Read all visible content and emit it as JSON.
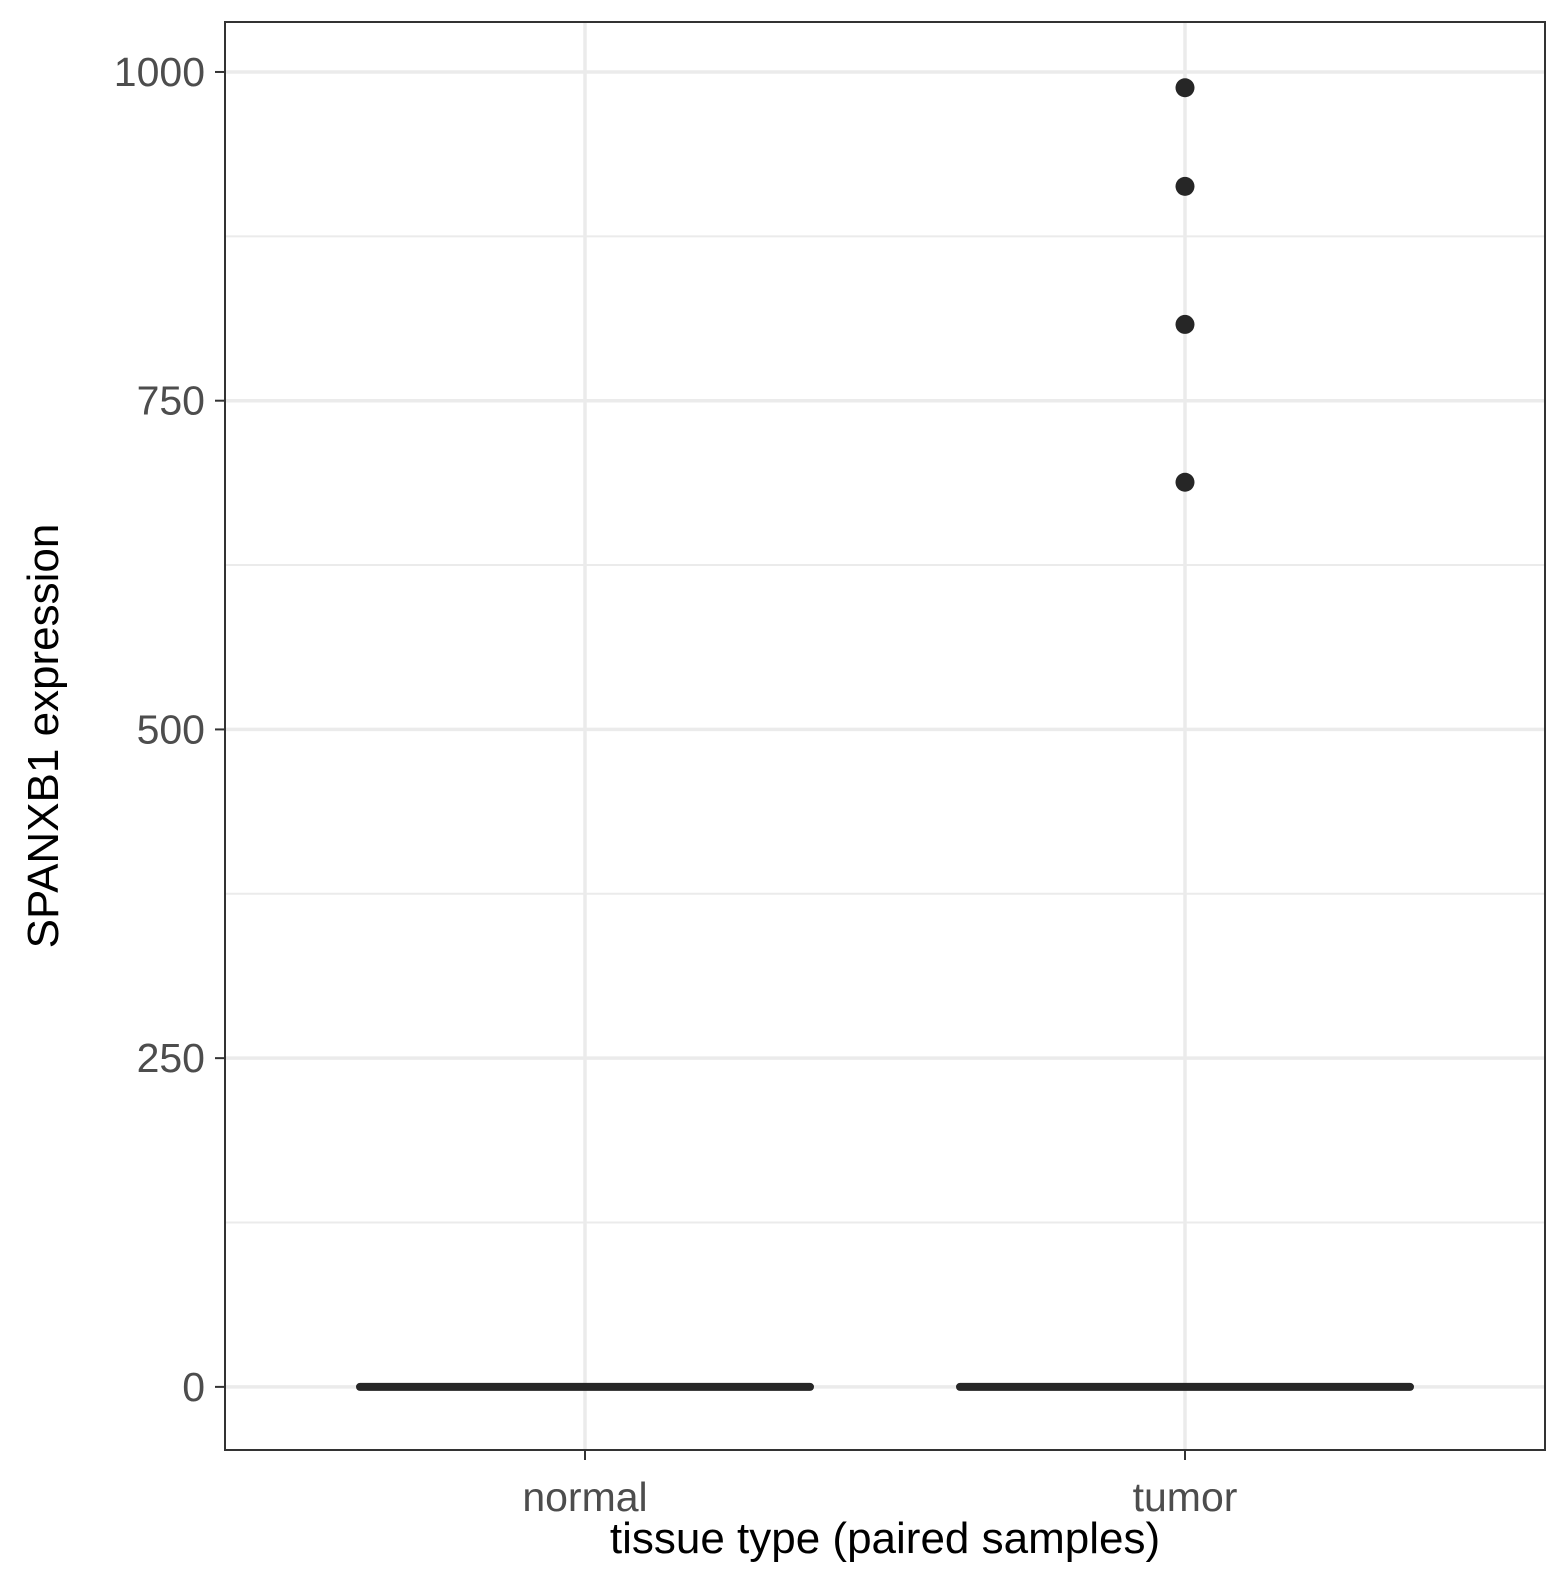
{
  "chart_data": {
    "type": "box",
    "xlabel": "tissue type (paired samples)",
    "ylabel": "SPANXB1 expression",
    "categories": [
      "normal",
      "tumor"
    ],
    "ylim": [
      -48,
      1038
    ],
    "yticks": [
      0,
      250,
      500,
      750,
      1000
    ],
    "y_minor_ticks": [
      125,
      375,
      625,
      875
    ],
    "grid": true,
    "legend": "none",
    "boxes": [
      {
        "category": "normal",
        "min": 0,
        "q1": 0,
        "median": 0,
        "q3": 0,
        "max": 0,
        "outliers": []
      },
      {
        "category": "tumor",
        "min": 0,
        "q1": 0,
        "median": 0,
        "q3": 0,
        "max": 0,
        "outliers": [
          988,
          913,
          808,
          688
        ]
      }
    ],
    "colors": {
      "box": "#262626",
      "grid": "#ebebeb",
      "panel_border": "#333333",
      "background": "#ffffff"
    }
  }
}
